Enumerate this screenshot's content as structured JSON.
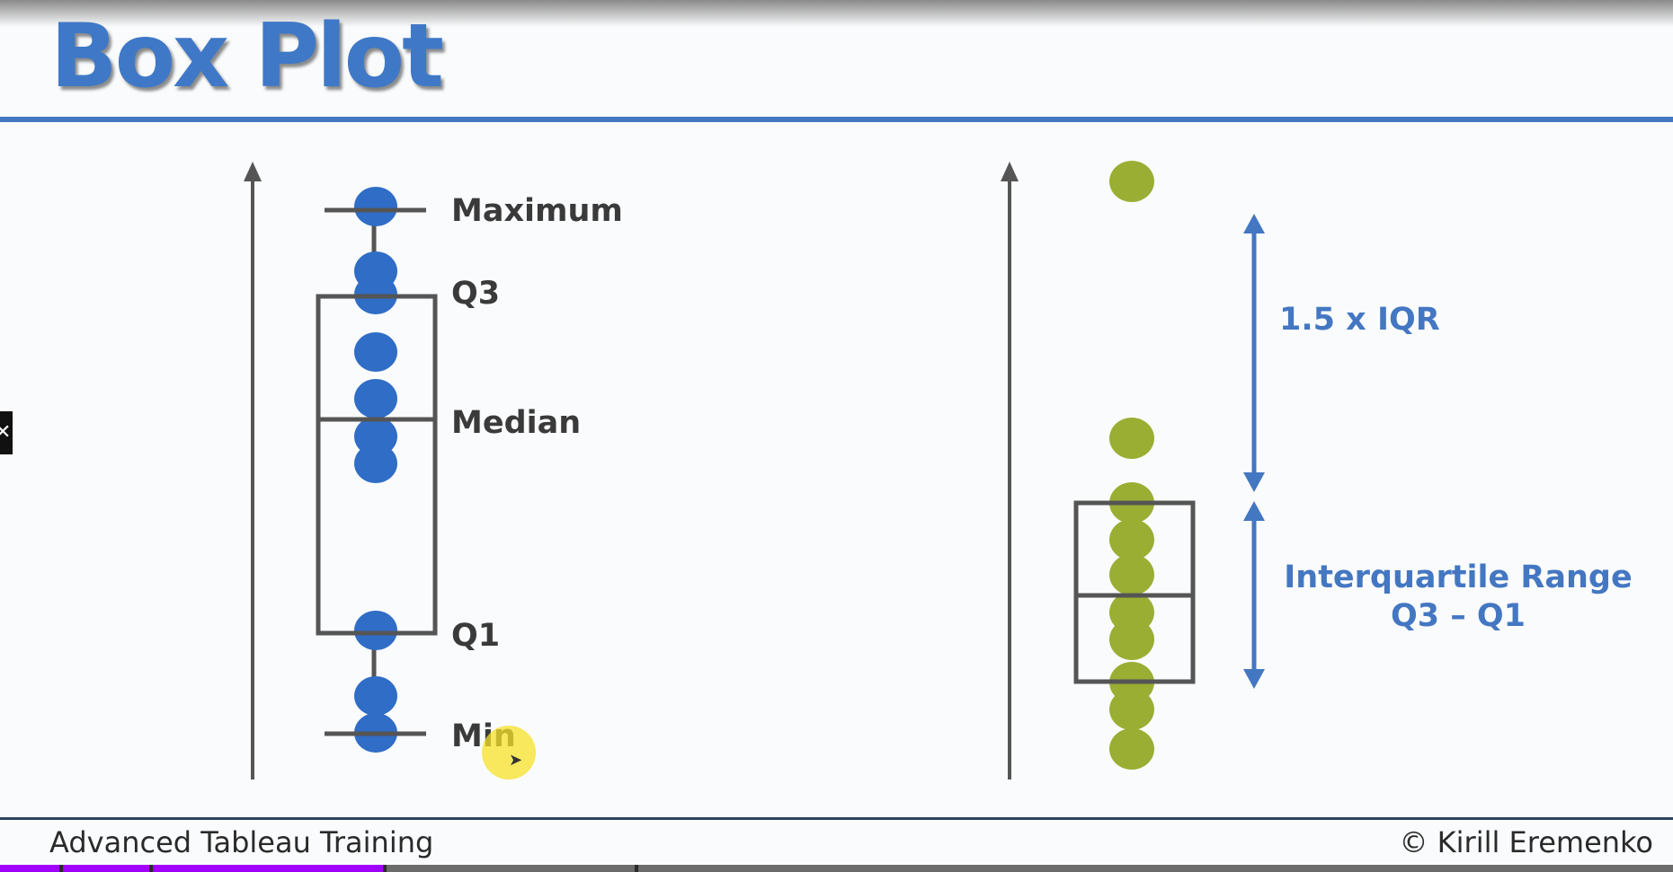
{
  "slide": {
    "title": "Box Plot",
    "footer_left": "Advanced Tableau Training",
    "footer_right": "© Kirill Eremenko",
    "video_progress": 0.23,
    "colors": {
      "title": "#3f78c7",
      "accent": "#4477c2",
      "blue_dot": "#2f6dc6",
      "green_dot": "#9aae34",
      "box": "#555555",
      "progress": "#a000ff"
    }
  },
  "left_diagram": {
    "labels": {
      "maximum": "Maximum",
      "q3": "Q3",
      "median": "Median",
      "q1": "Q1",
      "min": "Min"
    }
  },
  "right_diagram": {
    "labels": {
      "whisker_rule": "1.5 x IQR",
      "iqr_line1": "Interquartile Range",
      "iqr_line2": "Q3 – Q1"
    }
  },
  "icons": {
    "close": "close-icon",
    "cursor": "cursor-arrow-icon"
  }
}
